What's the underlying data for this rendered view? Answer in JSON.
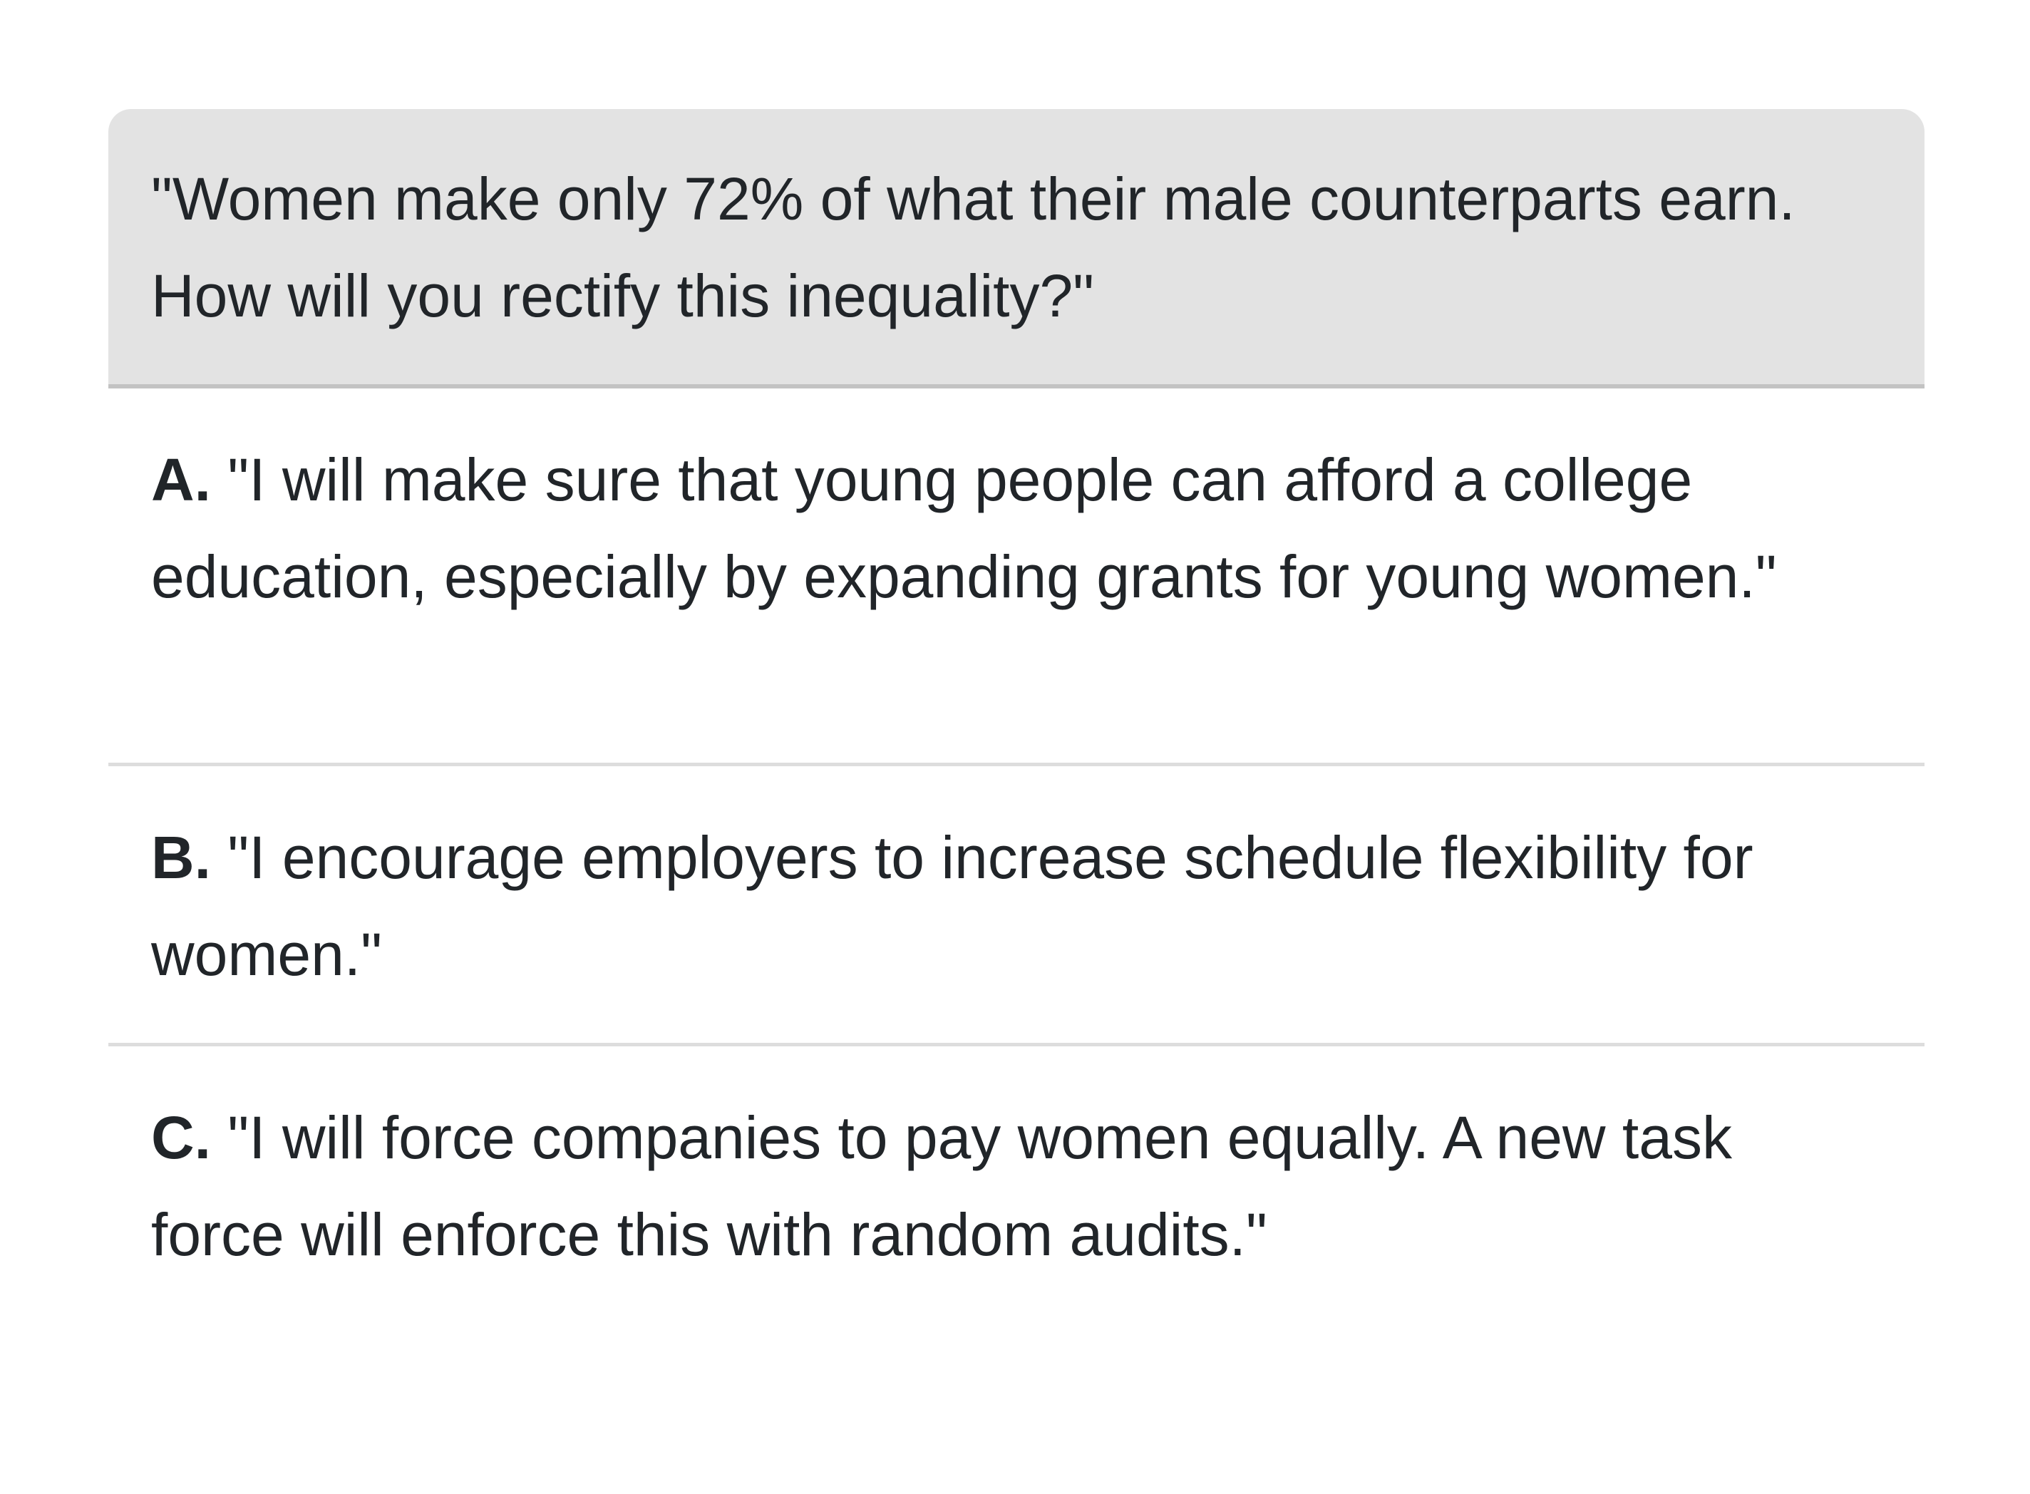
{
  "question": {
    "text": "\"Women make only 72% of what their male counterparts earn. How will you rectify this inequality?\""
  },
  "options": [
    {
      "letter": "A.",
      "text": " \"I will make sure that young people can afford a college education, especially by expanding grants for young women.\""
    },
    {
      "letter": "B.",
      "text": " \"I encourage employers to increase schedule flexibility for women.\""
    },
    {
      "letter": "C.",
      "text": " \"I will force companies to pay women equally. A new task force will enforce this with random audits.\""
    }
  ],
  "colors": {
    "question_background": "#e3e3e3",
    "question_divider": "#c3c3c3",
    "option_divider": "#dddddd",
    "text": "#212529"
  }
}
